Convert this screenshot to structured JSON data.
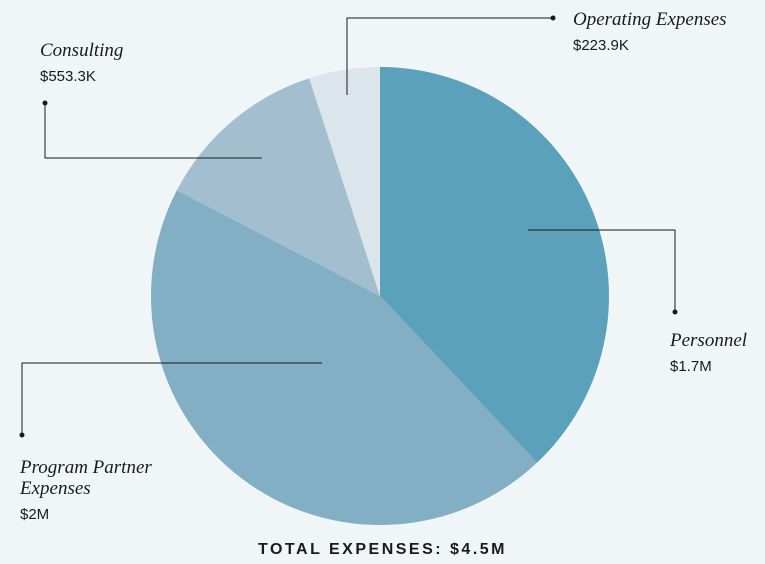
{
  "chart_data": {
    "type": "pie",
    "title": "TOTAL EXPENSES: $4.5M",
    "categories": [
      "Personnel",
      "Program Partner Expenses",
      "Consulting",
      "Operating Expenses"
    ],
    "values": [
      1700000,
      2000000,
      553300,
      223900
    ],
    "value_labels": [
      "$1.7M",
      "$2M",
      "$553.3K",
      "$223.9K"
    ],
    "colors": [
      "#5ca1bb",
      "#82afc4",
      "#a3bfcf",
      "#dde5ec"
    ]
  }
}
